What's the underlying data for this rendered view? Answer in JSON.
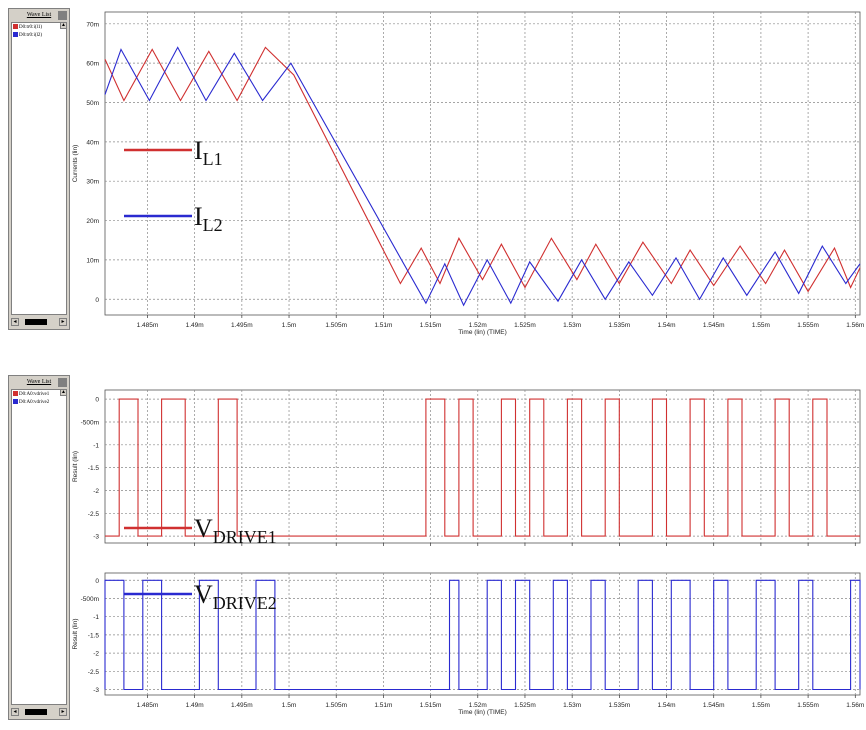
{
  "panels": [
    {
      "title": "Wave List",
      "items": [
        {
          "label": "D0:tr0:i(l1)",
          "color": "#d03030"
        },
        {
          "label": "D0:tr0:i(l2)",
          "color": "#2a2ad0"
        }
      ]
    },
    {
      "title": "Wave List",
      "items": [
        {
          "label": "D0:A0:vdrive1",
          "color": "#d03030"
        },
        {
          "label": "D0:A0:vdrive2",
          "color": "#2a2ad0"
        }
      ]
    }
  ],
  "xaxis": {
    "title": "Time (lin) (TIME)",
    "ticks": [
      1.485,
      1.49,
      1.495,
      1.5,
      1.505,
      1.51,
      1.515,
      1.52,
      1.525,
      1.53,
      1.535,
      1.54,
      1.545,
      1.55,
      1.555,
      1.56
    ],
    "tick_labels": [
      "1.485m",
      "1.49m",
      "1.495m",
      "1.5m",
      "1.505m",
      "1.51m",
      "1.515m",
      "1.52m",
      "1.525m",
      "1.53m",
      "1.535m",
      "1.54m",
      "1.545m",
      "1.55m",
      "1.555m",
      "1.56m"
    ],
    "range": [
      1.4805,
      1.5605
    ]
  },
  "chart_data": [
    {
      "type": "line",
      "ylabel": "Currents (lin)",
      "yticks": [
        0,
        10,
        20,
        30,
        40,
        50,
        60,
        70
      ],
      "ytick_labels": [
        "0",
        "10m",
        "20m",
        "30m",
        "40m",
        "50m",
        "60m",
        "70m"
      ],
      "ylim": [
        -4,
        73
      ],
      "grid": true,
      "legend": [
        {
          "label": "I",
          "sub": "L1",
          "color": "#d03030"
        },
        {
          "label": "I",
          "sub": "L2",
          "color": "#2a2ad0"
        }
      ],
      "series": [
        {
          "color": "#d03030",
          "points": [
            [
              1.4805,
              61
            ],
            [
              1.4825,
              50.5
            ],
            [
              1.4855,
              63.5
            ],
            [
              1.4885,
              50.5
            ],
            [
              1.4915,
              63
            ],
            [
              1.4945,
              50.5
            ],
            [
              1.4975,
              64
            ],
            [
              1.5005,
              57
            ],
            [
              1.5118,
              4
            ],
            [
              1.514,
              13
            ],
            [
              1.516,
              4
            ],
            [
              1.518,
              15.5
            ],
            [
              1.5205,
              5
            ],
            [
              1.5225,
              14
            ],
            [
              1.525,
              3
            ],
            [
              1.5278,
              15.5
            ],
            [
              1.5305,
              5
            ],
            [
              1.5325,
              14
            ],
            [
              1.535,
              4
            ],
            [
              1.5375,
              14.5
            ],
            [
              1.5405,
              4
            ],
            [
              1.5425,
              12.5
            ],
            [
              1.545,
              3.5
            ],
            [
              1.5478,
              13.5
            ],
            [
              1.5505,
              4
            ],
            [
              1.5525,
              12.5
            ],
            [
              1.555,
              2
            ],
            [
              1.5578,
              13
            ],
            [
              1.5595,
              3
            ],
            [
              1.5605,
              8
            ]
          ]
        },
        {
          "color": "#2a2ad0",
          "points": [
            [
              1.4805,
              52
            ],
            [
              1.4822,
              63.5
            ],
            [
              1.4852,
              50.5
            ],
            [
              1.4882,
              64
            ],
            [
              1.4912,
              50.5
            ],
            [
              1.4942,
              62.5
            ],
            [
              1.4972,
              50.5
            ],
            [
              1.5002,
              60
            ],
            [
              1.5145,
              -1
            ],
            [
              1.5165,
              9
            ],
            [
              1.5185,
              -1.5
            ],
            [
              1.521,
              10
            ],
            [
              1.5235,
              -1
            ],
            [
              1.5255,
              9.5
            ],
            [
              1.5285,
              -0.5
            ],
            [
              1.531,
              10
            ],
            [
              1.5335,
              0
            ],
            [
              1.536,
              9.5
            ],
            [
              1.5385,
              1
            ],
            [
              1.541,
              10.5
            ],
            [
              1.5435,
              0
            ],
            [
              1.546,
              10.5
            ],
            [
              1.5485,
              1
            ],
            [
              1.5515,
              12
            ],
            [
              1.554,
              1.5
            ],
            [
              1.5565,
              13.5
            ],
            [
              1.559,
              4
            ],
            [
              1.5605,
              9
            ]
          ]
        }
      ]
    },
    {
      "type": "line",
      "ylabel": "Result (lin)",
      "yticks": [
        0,
        -0.5,
        -1,
        -1.5,
        -2,
        -2.5,
        -3
      ],
      "ytick_labels": [
        "0",
        "-500m",
        "-1",
        "-1.5",
        "-2",
        "-2.5",
        "-3"
      ],
      "ylim": [
        -3.15,
        0.2
      ],
      "grid": true,
      "legend": [
        {
          "label": "V",
          "sub": "DRIVE1",
          "color": "#d03030"
        }
      ],
      "series": [
        {
          "color": "#d03030",
          "high": 0,
          "low": -3,
          "pulses": [
            [
              1.482,
              1.484
            ],
            [
              1.4865,
              1.489
            ],
            [
              1.4925,
              1.4945
            ],
            [
              1.5145,
              1.5165
            ],
            [
              1.518,
              1.5195
            ],
            [
              1.5225,
              1.524
            ],
            [
              1.5255,
              1.527
            ],
            [
              1.5295,
              1.531
            ],
            [
              1.5335,
              1.535
            ],
            [
              1.5385,
              1.54
            ],
            [
              1.5425,
              1.544
            ],
            [
              1.5465,
              1.548
            ],
            [
              1.5515,
              1.553
            ],
            [
              1.5555,
              1.557
            ]
          ]
        }
      ]
    },
    {
      "type": "line",
      "ylabel": "Result (lin)",
      "yticks": [
        0,
        -0.5,
        -1,
        -1.5,
        -2,
        -2.5,
        -3
      ],
      "ytick_labels": [
        "0",
        "-500m",
        "-1",
        "-1.5",
        "-2",
        "-2.5",
        "-3"
      ],
      "ylim": [
        -3.15,
        0.2
      ],
      "grid": true,
      "legend": [
        {
          "label": "V",
          "sub": "DRIVE2",
          "color": "#2a2ad0"
        }
      ],
      "series": [
        {
          "color": "#2a2ad0",
          "high": 0,
          "low": -3,
          "pulses": [
            [
              1.4805,
              1.4825
            ],
            [
              1.4845,
              1.4865
            ],
            [
              1.4905,
              1.4925
            ],
            [
              1.4965,
              1.4985
            ],
            [
              1.517,
              1.518
            ],
            [
              1.521,
              1.5225
            ],
            [
              1.524,
              1.5255
            ],
            [
              1.528,
              1.5295
            ],
            [
              1.532,
              1.5335
            ],
            [
              1.537,
              1.5385
            ],
            [
              1.5405,
              1.5425
            ],
            [
              1.545,
              1.5465
            ],
            [
              1.5495,
              1.5515
            ],
            [
              1.554,
              1.5555
            ],
            [
              1.5595,
              1.5605
            ]
          ]
        }
      ]
    }
  ]
}
